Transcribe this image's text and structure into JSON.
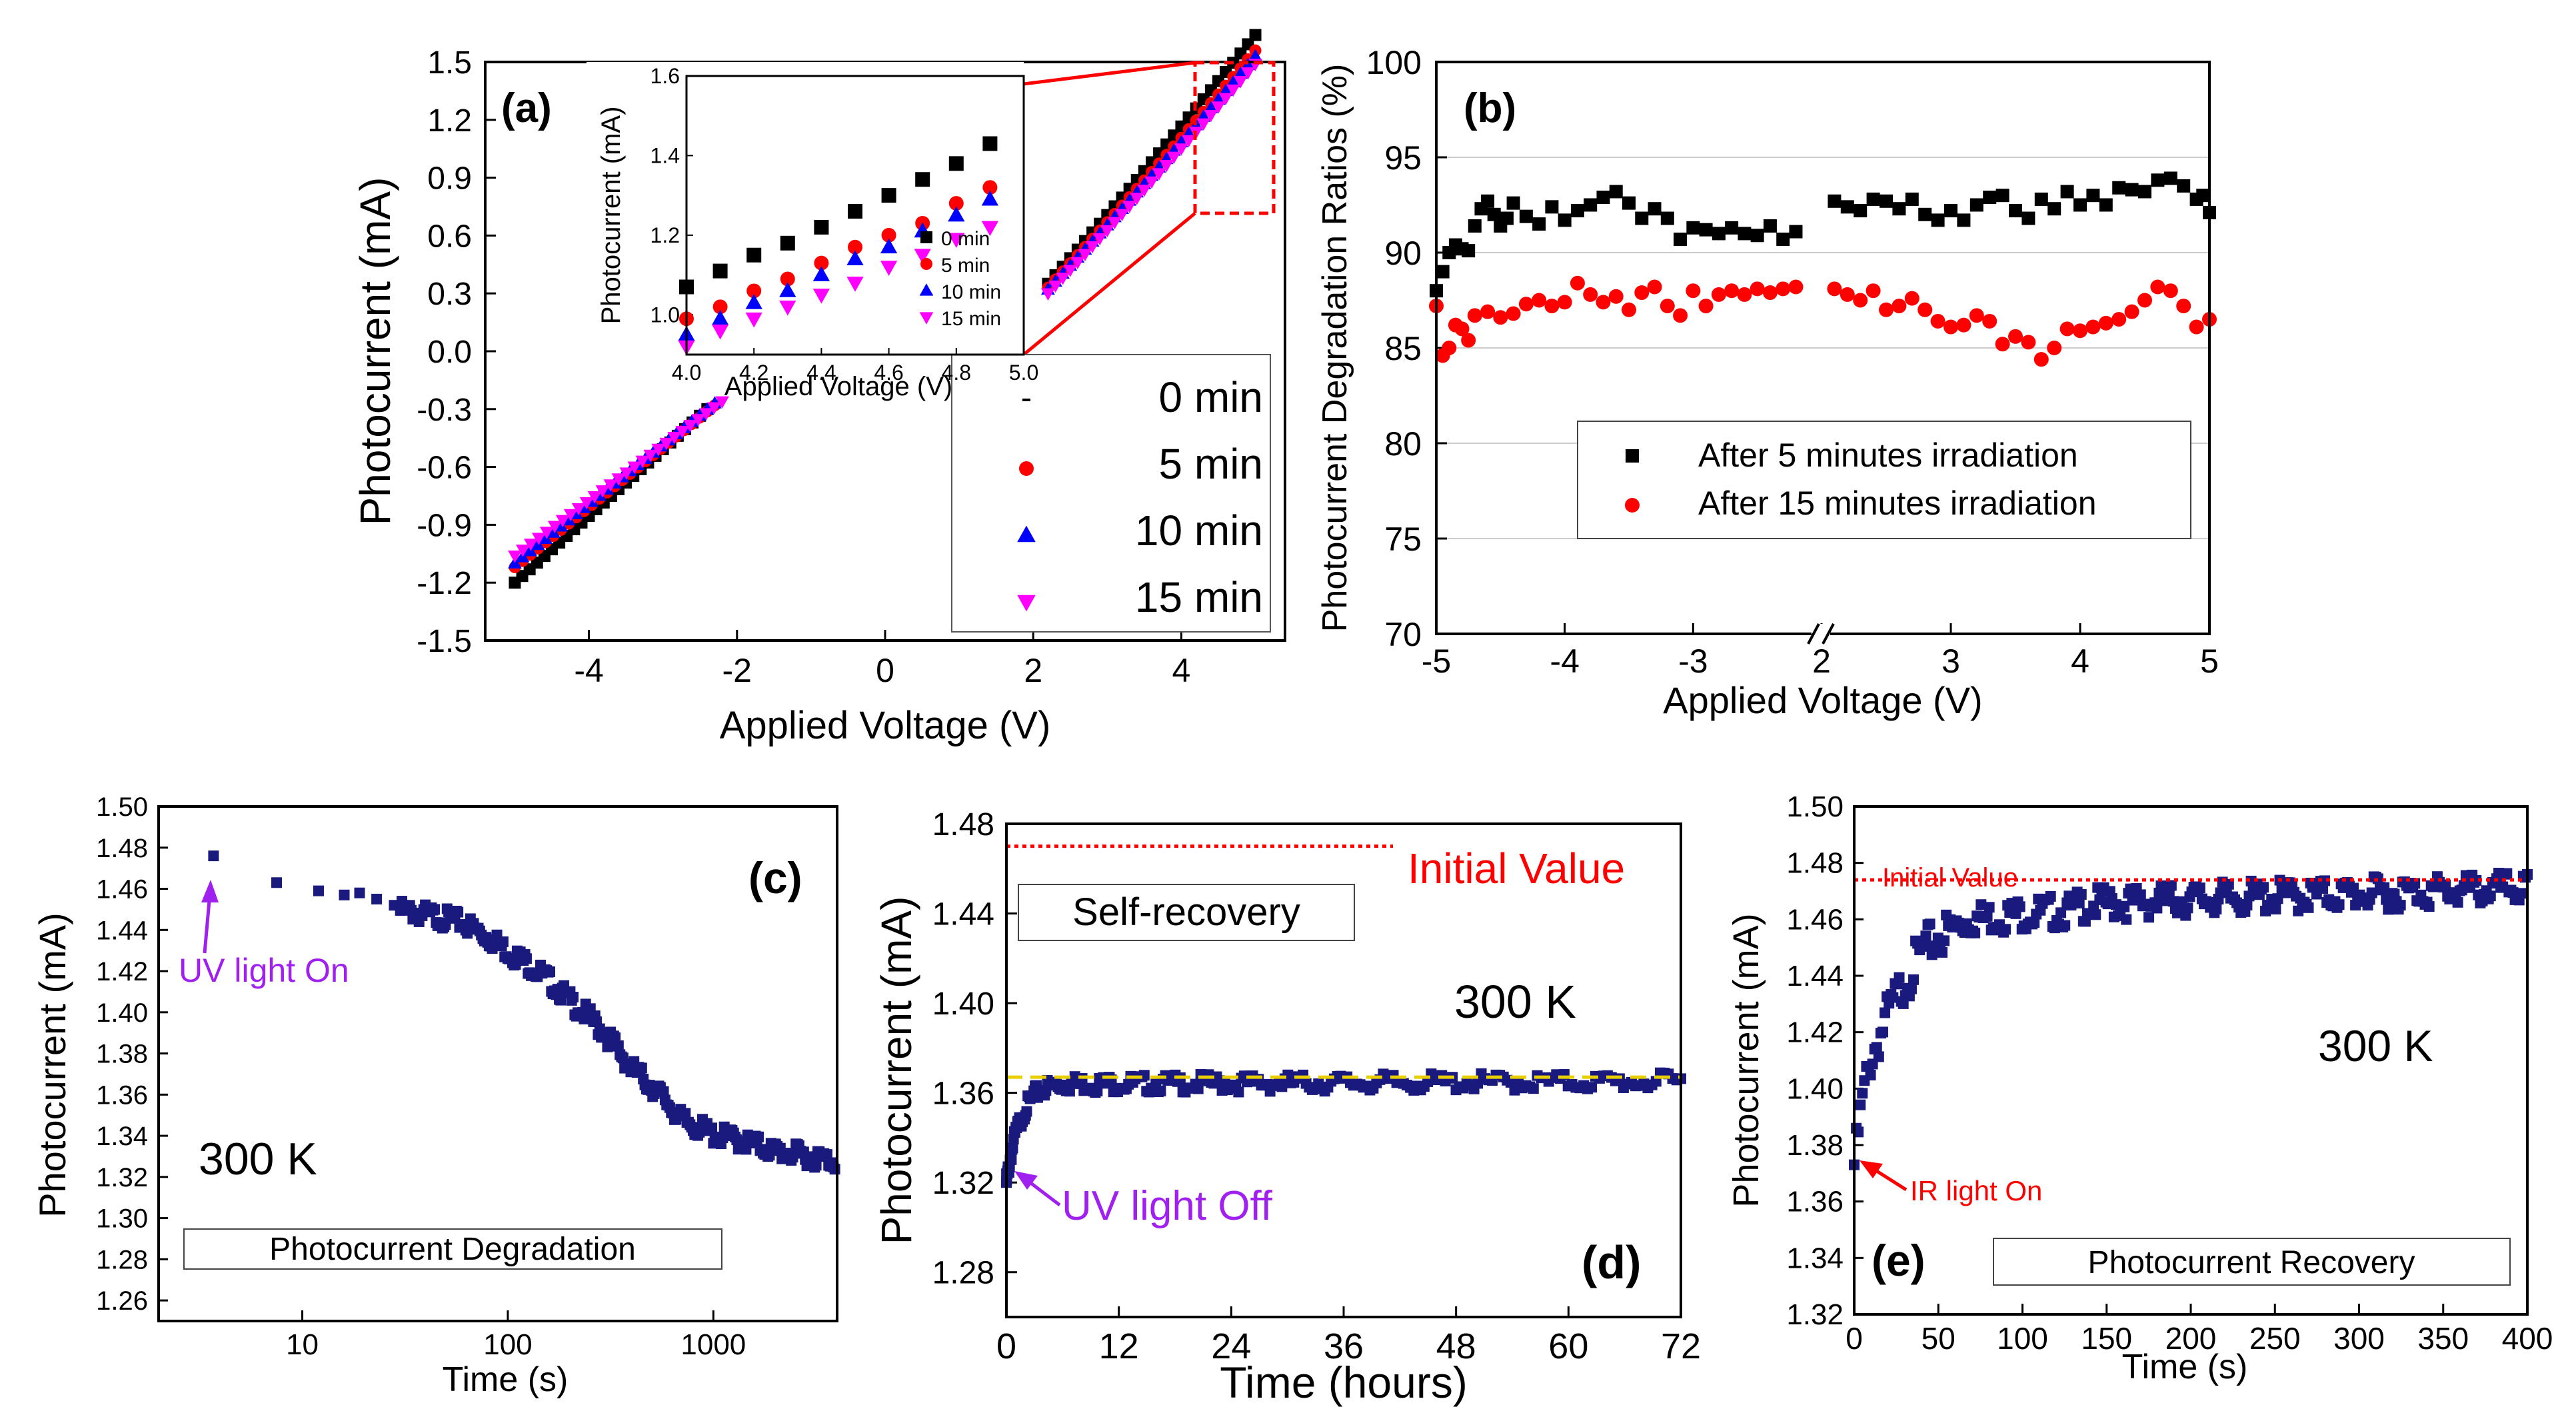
{
  "colors": {
    "black": "#000000",
    "red": "#ff0000",
    "blue": "#0000ff",
    "magenta": "#ff00ff",
    "navy": "#1a1a7e",
    "violet": "#a020f0",
    "yellow": "#e8d000",
    "grid": "#cccccc"
  },
  "chart_data": [
    {
      "id": "a",
      "type": "scatter",
      "panel_label": "(a)",
      "xlabel": "Applied Voltage (V)",
      "ylabel": "Photocurrent (mA)",
      "xlim": [
        -5.4,
        5.4
      ],
      "ylim": [
        -1.5,
        1.5
      ],
      "xticks": [
        -4,
        -2,
        0,
        2,
        4
      ],
      "yticks": [
        -1.5,
        -1.2,
        -0.9,
        -0.6,
        -0.3,
        0.0,
        0.3,
        0.6,
        0.9,
        1.2,
        1.5
      ],
      "ytick_labels": [
        "-1.5",
        "-1.2",
        "-0.9",
        "-0.6",
        "-0.3",
        "0.0",
        "0.3",
        "0.6",
        "0.9",
        "1.2",
        "1.5"
      ],
      "legend": [
        "0 min",
        "5 min",
        "10 min",
        "15 min"
      ],
      "series": [
        {
          "name": "0 min",
          "marker": "square",
          "color": "#000000",
          "neg": {
            "v0": -5.0,
            "i0": -1.2,
            "v1": -2.4,
            "i1": -0.3
          },
          "pos": {
            "v0": 2.2,
            "i0": 0.35,
            "v1": 5.0,
            "i1": 1.58
          }
        },
        {
          "name": "5 min",
          "marker": "circle",
          "color": "#ff0000",
          "neg": {
            "v0": -5.0,
            "i0": -1.12,
            "v1": -2.3,
            "i1": -0.28
          },
          "pos": {
            "v0": 2.2,
            "i0": 0.33,
            "v1": 5.0,
            "i1": 1.5
          }
        },
        {
          "name": "10 min",
          "marker": "triangle-up",
          "color": "#0000ff",
          "neg": {
            "v0": -5.0,
            "i0": -1.1,
            "v1": -2.3,
            "i1": -0.27
          },
          "pos": {
            "v0": 2.2,
            "i0": 0.32,
            "v1": 5.0,
            "i1": 1.47
          }
        },
        {
          "name": "15 min",
          "marker": "triangle-down",
          "color": "#ff00ff",
          "neg": {
            "v0": -5.0,
            "i0": -1.06,
            "v1": -2.2,
            "i1": -0.26
          },
          "pos": {
            "v0": 2.2,
            "i0": 0.3,
            "v1": 5.0,
            "i1": 1.43
          }
        }
      ],
      "inset": {
        "xlabel": "Applied Voltage (V)",
        "ylabel": "Photocurrent (mA)",
        "xlim": [
          4.0,
          5.0
        ],
        "ylim": [
          0.9,
          1.6
        ],
        "xticks": [
          4.0,
          4.2,
          4.4,
          4.6,
          4.8,
          5.0
        ],
        "xtick_labels": [
          "4.0",
          "4.2",
          "4.4",
          "4.6",
          "4.8",
          "5.0"
        ],
        "yticks": [
          1.0,
          1.2,
          1.4,
          1.6
        ],
        "ytick_labels": [
          "1.0",
          "1.2",
          "1.4",
          "1.6"
        ],
        "legend": [
          "0 min",
          "5 min",
          "10 min",
          "15 min"
        ],
        "x": [
          4.0,
          4.1,
          4.2,
          4.3,
          4.4,
          4.5,
          4.6,
          4.7,
          4.8,
          4.9
        ],
        "series": [
          {
            "name": "0 min",
            "values": [
              1.07,
              1.11,
              1.15,
              1.18,
              1.22,
              1.26,
              1.3,
              1.34,
              1.38,
              1.43
            ]
          },
          {
            "name": "5 min",
            "values": [
              0.99,
              1.02,
              1.06,
              1.09,
              1.13,
              1.17,
              1.2,
              1.23,
              1.28,
              1.32
            ]
          },
          {
            "name": "10 min",
            "values": [
              0.95,
              0.99,
              1.03,
              1.06,
              1.1,
              1.14,
              1.17,
              1.21,
              1.25,
              1.29
            ]
          },
          {
            "name": "15 min",
            "values": [
              0.92,
              0.96,
              0.99,
              1.02,
              1.05,
              1.08,
              1.12,
              1.15,
              1.19,
              1.22
            ]
          }
        ]
      }
    },
    {
      "id": "b",
      "type": "scatter",
      "panel_label": "(b)",
      "xlabel": "Applied Voltage (V)",
      "ylabel": "Photocurrent Degradation Ratios (%)",
      "ylim": [
        70,
        100
      ],
      "yticks": [
        70,
        75,
        80,
        85,
        90,
        95,
        100
      ],
      "xticks": [
        "-5",
        "-4",
        "-3",
        "2",
        "3",
        "4",
        "5"
      ],
      "x_break": true,
      "grid": true,
      "segments": [
        {
          "xlim": [
            -5,
            -2
          ]
        },
        {
          "xlim": [
            2,
            5
          ]
        }
      ],
      "legend": [
        "After 5 minutes irradiation",
        "After 15 minutes irradiation"
      ],
      "series": [
        {
          "name": "After 5 minutes irradiation",
          "color": "#000000",
          "marker": "square",
          "neg": [
            [
              -5.0,
              88.0
            ],
            [
              -4.95,
              89.0
            ],
            [
              -4.9,
              90.0
            ],
            [
              -4.85,
              90.4
            ],
            [
              -4.8,
              90.2
            ],
            [
              -4.75,
              90.1
            ],
            [
              -4.7,
              91.4
            ],
            [
              -4.65,
              92.3
            ],
            [
              -4.6,
              92.7
            ],
            [
              -4.55,
              92.0
            ],
            [
              -4.5,
              91.4
            ],
            [
              -4.45,
              91.8
            ],
            [
              -4.4,
              92.6
            ],
            [
              -4.3,
              91.9
            ],
            [
              -4.2,
              91.5
            ],
            [
              -4.1,
              92.4
            ],
            [
              -4.0,
              91.7
            ],
            [
              -3.9,
              92.2
            ],
            [
              -3.8,
              92.5
            ],
            [
              -3.7,
              92.9
            ],
            [
              -3.6,
              93.2
            ],
            [
              -3.5,
              92.6
            ],
            [
              -3.4,
              91.8
            ],
            [
              -3.3,
              92.3
            ],
            [
              -3.2,
              91.8
            ],
            [
              -3.1,
              90.7
            ],
            [
              -3.0,
              91.3
            ],
            [
              -2.9,
              91.2
            ],
            [
              -2.8,
              91.0
            ],
            [
              -2.7,
              91.3
            ],
            [
              -2.6,
              91.0
            ],
            [
              -2.5,
              90.9
            ],
            [
              -2.4,
              91.4
            ],
            [
              -2.3,
              90.7
            ],
            [
              -2.2,
              91.1
            ]
          ],
          "pos": [
            [
              2.1,
              92.7
            ],
            [
              2.2,
              92.4
            ],
            [
              2.3,
              92.2
            ],
            [
              2.4,
              92.8
            ],
            [
              2.5,
              92.7
            ],
            [
              2.6,
              92.3
            ],
            [
              2.7,
              92.8
            ],
            [
              2.8,
              92.0
            ],
            [
              2.9,
              91.7
            ],
            [
              3.0,
              92.2
            ],
            [
              3.1,
              91.7
            ],
            [
              3.2,
              92.5
            ],
            [
              3.3,
              92.9
            ],
            [
              3.4,
              93.0
            ],
            [
              3.5,
              92.2
            ],
            [
              3.6,
              91.8
            ],
            [
              3.7,
              92.8
            ],
            [
              3.8,
              92.3
            ],
            [
              3.9,
              93.2
            ],
            [
              4.0,
              92.5
            ],
            [
              4.1,
              93.0
            ],
            [
              4.2,
              92.5
            ],
            [
              4.3,
              93.4
            ],
            [
              4.4,
              93.3
            ],
            [
              4.5,
              93.2
            ],
            [
              4.6,
              93.8
            ],
            [
              4.7,
              93.9
            ],
            [
              4.8,
              93.5
            ],
            [
              4.9,
              92.8
            ],
            [
              4.95,
              93.0
            ],
            [
              5.0,
              92.1
            ]
          ]
        },
        {
          "name": "After 15 minutes irradiation",
          "color": "#ff0000",
          "marker": "circle",
          "neg": [
            [
              -5.0,
              87.2
            ],
            [
              -4.95,
              84.6
            ],
            [
              -4.9,
              85.0
            ],
            [
              -4.85,
              86.2
            ],
            [
              -4.8,
              86.0
            ],
            [
              -4.75,
              85.4
            ],
            [
              -4.7,
              86.7
            ],
            [
              -4.6,
              86.9
            ],
            [
              -4.5,
              86.6
            ],
            [
              -4.4,
              86.8
            ],
            [
              -4.3,
              87.3
            ],
            [
              -4.2,
              87.5
            ],
            [
              -4.1,
              87.2
            ],
            [
              -4.0,
              87.4
            ],
            [
              -3.9,
              88.4
            ],
            [
              -3.8,
              87.8
            ],
            [
              -3.7,
              87.4
            ],
            [
              -3.6,
              87.7
            ],
            [
              -3.5,
              87.0
            ],
            [
              -3.4,
              87.9
            ],
            [
              -3.3,
              88.2
            ],
            [
              -3.2,
              87.2
            ],
            [
              -3.1,
              86.7
            ],
            [
              -3.0,
              88.0
            ],
            [
              -2.9,
              87.2
            ],
            [
              -2.8,
              87.8
            ],
            [
              -2.7,
              88.0
            ],
            [
              -2.6,
              87.8
            ],
            [
              -2.5,
              88.1
            ],
            [
              -2.4,
              87.9
            ],
            [
              -2.3,
              88.1
            ],
            [
              -2.2,
              88.2
            ]
          ],
          "pos": [
            [
              2.1,
              88.1
            ],
            [
              2.2,
              87.8
            ],
            [
              2.3,
              87.5
            ],
            [
              2.4,
              88.0
            ],
            [
              2.5,
              87.0
            ],
            [
              2.6,
              87.2
            ],
            [
              2.7,
              87.6
            ],
            [
              2.8,
              87.0
            ],
            [
              2.9,
              86.4
            ],
            [
              3.0,
              86.1
            ],
            [
              3.1,
              86.2
            ],
            [
              3.2,
              86.7
            ],
            [
              3.3,
              86.4
            ],
            [
              3.4,
              85.2
            ],
            [
              3.5,
              85.6
            ],
            [
              3.6,
              85.3
            ],
            [
              3.7,
              84.4
            ],
            [
              3.8,
              85.0
            ],
            [
              3.9,
              86.0
            ],
            [
              4.0,
              85.9
            ],
            [
              4.1,
              86.1
            ],
            [
              4.2,
              86.3
            ],
            [
              4.3,
              86.5
            ],
            [
              4.4,
              86.9
            ],
            [
              4.5,
              87.5
            ],
            [
              4.6,
              88.2
            ],
            [
              4.7,
              88.0
            ],
            [
              4.8,
              87.2
            ],
            [
              4.9,
              86.1
            ],
            [
              5.0,
              86.5
            ]
          ]
        }
      ]
    },
    {
      "id": "c",
      "type": "scatter",
      "panel_label": "(c)",
      "xlabel": "Time (s)",
      "ylabel": "Photocurrent (mA)",
      "xscale": "log",
      "xlim": [
        2,
        4000
      ],
      "ylim": [
        1.25,
        1.5
      ],
      "xticks": [
        10,
        100,
        1000
      ],
      "xtick_labels": [
        "10",
        "100",
        "1000"
      ],
      "yticks": [
        1.26,
        1.28,
        1.3,
        1.32,
        1.34,
        1.36,
        1.38,
        1.4,
        1.42,
        1.44,
        1.46,
        1.48,
        1.5
      ],
      "ytick_labels": [
        "1.26",
        "1.28",
        "1.30",
        "1.32",
        "1.34",
        "1.36",
        "1.38",
        "1.40",
        "1.42",
        "1.44",
        "1.46",
        "1.48",
        "1.50"
      ],
      "color": "#1a1a7e",
      "sparse_points": [
        [
          3.7,
          1.476
        ],
        [
          7.5,
          1.463
        ],
        [
          12,
          1.459
        ],
        [
          16,
          1.457
        ],
        [
          19,
          1.458
        ],
        [
          23,
          1.455
        ],
        [
          28,
          1.452
        ]
      ],
      "dense_curve": [
        [
          30,
          1.452
        ],
        [
          60,
          1.446
        ],
        [
          100,
          1.432
        ],
        [
          200,
          1.408
        ],
        [
          400,
          1.375
        ],
        [
          700,
          1.35
        ],
        [
          1000,
          1.343
        ],
        [
          2000,
          1.335
        ],
        [
          3900,
          1.33
        ]
      ],
      "annotations": {
        "uv_on": "UV light On",
        "temperature": "300 K",
        "box": "Photocurrent Degradation"
      }
    },
    {
      "id": "d",
      "type": "scatter",
      "panel_label": "(d)",
      "xlabel": "Time (hours)",
      "ylabel": "Photocurrent (mA)",
      "xlim": [
        0,
        72
      ],
      "ylim": [
        1.26,
        1.48
      ],
      "xticks": [
        0,
        12,
        24,
        36,
        48,
        60,
        72
      ],
      "yticks": [
        1.28,
        1.32,
        1.36,
        1.4,
        1.44,
        1.48
      ],
      "ytick_labels": [
        "1.28",
        "1.32",
        "1.36",
        "1.40",
        "1.44",
        "1.48"
      ],
      "color": "#1a1a7e",
      "initial_value": 1.47,
      "plateau": 1.367,
      "recovery_curve": [
        [
          0,
          1.322
        ],
        [
          0.5,
          1.335
        ],
        [
          1,
          1.344
        ],
        [
          2,
          1.355
        ],
        [
          3,
          1.361
        ],
        [
          4,
          1.364
        ],
        [
          6,
          1.366
        ],
        [
          72,
          1.367
        ]
      ],
      "annotations": {
        "initial": "Initial Value",
        "box": "Self-recovery",
        "temperature": "300 K",
        "uv_off": "UV light Off"
      }
    },
    {
      "id": "e",
      "type": "scatter",
      "panel_label": "(e)",
      "xlabel": "Time (s)",
      "ylabel": "Photocurrent (mA)",
      "xlim": [
        0,
        400
      ],
      "ylim": [
        1.32,
        1.5
      ],
      "xticks": [
        0,
        50,
        100,
        150,
        200,
        250,
        300,
        350,
        400
      ],
      "yticks": [
        1.32,
        1.34,
        1.36,
        1.38,
        1.4,
        1.42,
        1.44,
        1.46,
        1.48,
        1.5
      ],
      "ytick_labels": [
        "1.32",
        "1.34",
        "1.36",
        "1.38",
        "1.40",
        "1.42",
        "1.44",
        "1.46",
        "1.48",
        "1.50"
      ],
      "color": "#1a1a7e",
      "initial_value": 1.474,
      "recovery_curve": [
        [
          0,
          1.377
        ],
        [
          5,
          1.4
        ],
        [
          10,
          1.415
        ],
        [
          20,
          1.43
        ],
        [
          30,
          1.442
        ],
        [
          40,
          1.452
        ],
        [
          50,
          1.458
        ],
        [
          70,
          1.463
        ],
        [
          100,
          1.465
        ],
        [
          130,
          1.466
        ],
        [
          135,
          1.468
        ],
        [
          200,
          1.47
        ],
        [
          300,
          1.472
        ],
        [
          400,
          1.474
        ]
      ],
      "annotations": {
        "initial": "Initial Value",
        "ir_on": "IR light On",
        "temperature": "300 K",
        "box": "Photocurrent Recovery"
      }
    }
  ]
}
